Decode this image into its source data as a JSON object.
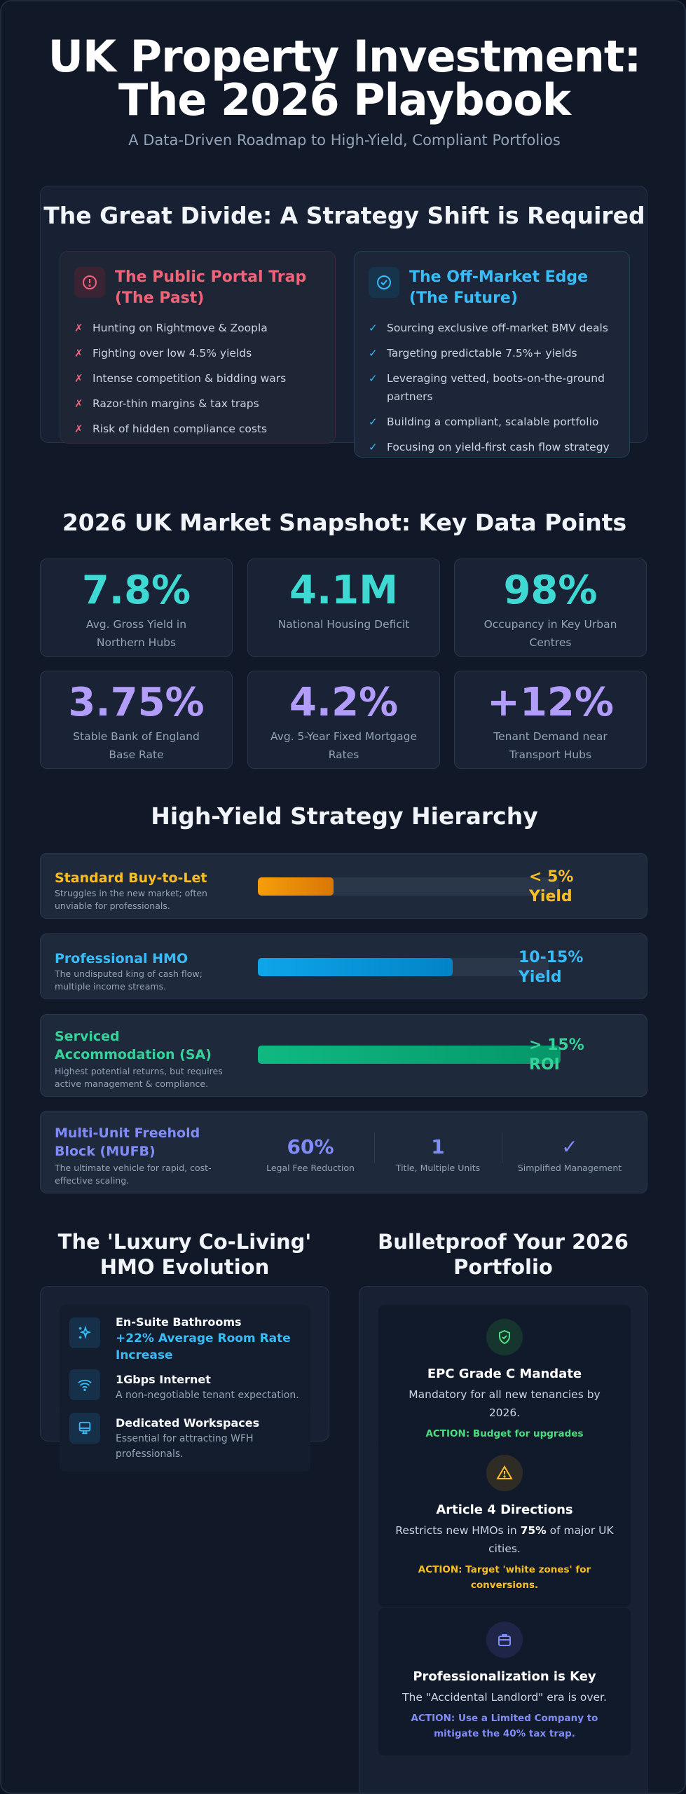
{
  "header": {
    "title_line1": "UK Property Investment:",
    "title_line2": "The 2026 Playbook",
    "subtitle": "A Data-Driven Roadmap to High-Yield, Compliant Portfolios"
  },
  "divide": {
    "heading": "The Great Divide: A Strategy Shift is Required",
    "past": {
      "title": "The Public Portal Trap (The Past)",
      "icon": "alert-circle-icon",
      "color": "#f0647a",
      "marker": "✗",
      "items": [
        "Hunting on Rightmove & Zoopla",
        "Fighting over low 4.5% yields",
        "Intense competition & bidding wars",
        "Razor-thin margins & tax traps",
        "Risk of hidden compliance costs"
      ]
    },
    "future": {
      "title": "The Off-Market Edge (The Future)",
      "icon": "check-circle-icon",
      "color": "#38bdf8",
      "marker": "✓",
      "items": [
        "Sourcing exclusive off-market BMV deals",
        "Targeting predictable 7.5%+ yields",
        "Leveraging vetted, boots-on-the-ground partners",
        "Building a compliant, scalable portfolio",
        "Focusing on yield-first cash flow strategy"
      ]
    }
  },
  "snapshot": {
    "heading": "2026 UK Market Snapshot: Key Data Points",
    "stats": [
      {
        "value": "7.8%",
        "label": "Avg. Gross Yield in Northern Hubs",
        "color": "#3fd9d4"
      },
      {
        "value": "4.1M",
        "label": "National Housing Deficit",
        "color": "#3fd9d4"
      },
      {
        "value": "98%",
        "label": "Occupancy in Key Urban Centres",
        "color": "#3fd9d4"
      },
      {
        "value": "3.75%",
        "label": "Stable Bank of England Base Rate",
        "color": "#b39dfa"
      },
      {
        "value": "4.2%",
        "label": "Avg. 5-Year Fixed Mortgage Rates",
        "color": "#b39dfa"
      },
      {
        "value": "+12%",
        "label": "Tenant Demand near Transport Hubs",
        "color": "#b39dfa"
      }
    ]
  },
  "hierarchy": {
    "heading": "High-Yield Strategy Hierarchy",
    "rows": [
      {
        "title": "Standard Buy-to-Let",
        "desc": "Struggles in the new market; often unviable for professionals.",
        "value": "< 5% Yield",
        "level": 0.25,
        "color": "#fbbf24"
      },
      {
        "title": "Professional HMO",
        "desc": "The undisputed king of cash flow; multiple income streams.",
        "value": "10-15% Yield",
        "level": 0.67,
        "color": "#38bdf8"
      },
      {
        "title": "Serviced Accommodation (SA)",
        "desc": "Highest potential returns, but requires active management & compliance.",
        "value": "> 15% ROI",
        "level": 1.0,
        "color": "#34d399"
      }
    ],
    "mufb": {
      "title": "Multi-Unit Freehold Block (MUFB)",
      "desc": "The ultimate vehicle for rapid, cost-effective scaling.",
      "color": "#818cf8",
      "stats": [
        {
          "value": "60%",
          "label": "Legal Fee Reduction"
        },
        {
          "value": "1",
          "label": "Title, Multiple Units"
        },
        {
          "value": "✓",
          "label": "Simplified Management"
        }
      ]
    }
  },
  "coliving": {
    "heading": "The 'Luxury Co-Living' HMO Evolution",
    "features": [
      {
        "title": "En-Suite Bathrooms",
        "desc": "+22% Average Room Rate Increase",
        "icon": "sparkle-icon"
      },
      {
        "title": "1Gbps Internet",
        "desc": "A non-negotiable tenant expectation.",
        "icon": "wifi-icon"
      },
      {
        "title": "Dedicated Workspaces",
        "desc": "Essential for attracting WFH professionals.",
        "icon": "monitor-icon"
      }
    ]
  },
  "bulletproof": {
    "heading": "Bulletproof Your 2026 Portfolio",
    "items": [
      {
        "title": "EPC Grade C Mandate",
        "desc": "Mandatory for all new tenancies by 2026.",
        "action": "ACTION: Budget for upgrades immediately.",
        "color": "#4ade80",
        "icon": "shield-check-icon"
      },
      {
        "title": "Article 4 Directions",
        "desc_pre": "Restricts new HMOs in ",
        "desc_bold": "75%",
        "desc_post": " of major UK cities.",
        "action": "ACTION: Target 'white zones' for conversions.",
        "color": "#fbbf24",
        "icon": "warning-icon"
      },
      {
        "title": "Professionalization is Key",
        "desc": "The \"Accidental Landlord\" era is over.",
        "action": "ACTION: Use a Limited Company to mitigate the 40% tax trap.",
        "color": "#818cf8",
        "icon": "briefcase-icon"
      }
    ]
  }
}
